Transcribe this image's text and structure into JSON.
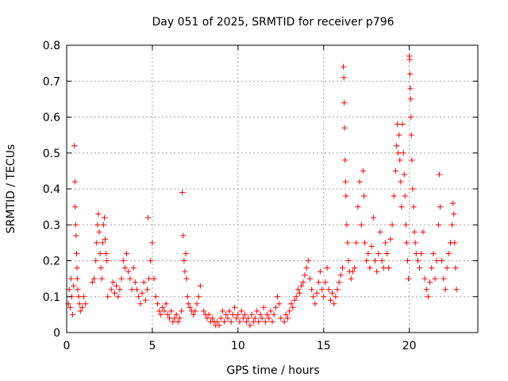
{
  "chart_data": {
    "type": "scatter",
    "title": "Day 051 of 2025, SRMTID for receiver p796",
    "xlabel": "GPS time / hours",
    "ylabel": "SRMTID / TECUs",
    "xlim": [
      0,
      24
    ],
    "ylim": [
      0,
      0.8
    ],
    "x_ticks": [
      0,
      5,
      10,
      15,
      20
    ],
    "x_tick_labels": [
      "0",
      "5",
      "10",
      "15",
      "20"
    ],
    "y_ticks": [
      0,
      0.1,
      0.2,
      0.3,
      0.4,
      0.5,
      0.6,
      0.7,
      0.8
    ],
    "y_tick_labels": [
      "0",
      "0.1",
      "0.2",
      "0.3",
      "0.4",
      "0.5",
      "0.6",
      "0.7",
      "0.8"
    ],
    "grid": true,
    "marker": "+",
    "series": [
      {
        "name": "SRMTID",
        "color": "#ff0000",
        "points": [
          [
            0.1,
            0.08
          ],
          [
            0.15,
            0.12
          ],
          [
            0.2,
            0.07
          ],
          [
            0.25,
            0.15
          ],
          [
            0.3,
            0.1
          ],
          [
            0.35,
            0.05
          ],
          [
            0.4,
            0.13
          ],
          [
            0.45,
            0.52
          ],
          [
            0.48,
            0.42
          ],
          [
            0.5,
            0.35
          ],
          [
            0.52,
            0.3
          ],
          [
            0.55,
            0.27
          ],
          [
            0.58,
            0.22
          ],
          [
            0.6,
            0.18
          ],
          [
            0.62,
            0.15
          ],
          [
            0.65,
            0.12
          ],
          [
            0.7,
            0.1
          ],
          [
            0.75,
            0.08
          ],
          [
            0.8,
            0.06
          ],
          [
            0.9,
            0.07
          ],
          [
            1.0,
            0.1
          ],
          [
            1.1,
            0.08
          ],
          [
            1.5,
            0.14
          ],
          [
            1.6,
            0.15
          ],
          [
            1.7,
            0.2
          ],
          [
            1.75,
            0.25
          ],
          [
            1.8,
            0.3
          ],
          [
            1.85,
            0.33
          ],
          [
            1.9,
            0.28
          ],
          [
            1.95,
            0.22
          ],
          [
            2.0,
            0.18
          ],
          [
            2.05,
            0.15
          ],
          [
            2.1,
            0.25
          ],
          [
            2.15,
            0.3
          ],
          [
            2.2,
            0.32
          ],
          [
            2.25,
            0.26
          ],
          [
            2.3,
            0.22
          ],
          [
            2.35,
            0.2
          ],
          [
            2.4,
            0.1
          ],
          [
            2.6,
            0.12
          ],
          [
            2.7,
            0.14
          ],
          [
            2.8,
            0.11
          ],
          [
            2.9,
            0.13
          ],
          [
            3.0,
            0.1
          ],
          [
            3.1,
            0.12
          ],
          [
            3.2,
            0.15
          ],
          [
            3.3,
            0.2
          ],
          [
            3.4,
            0.18
          ],
          [
            3.5,
            0.22
          ],
          [
            3.6,
            0.17
          ],
          [
            3.7,
            0.15
          ],
          [
            3.8,
            0.12
          ],
          [
            3.9,
            0.18
          ],
          [
            4.0,
            0.14
          ],
          [
            4.1,
            0.12
          ],
          [
            4.2,
            0.1
          ],
          [
            4.3,
            0.08
          ],
          [
            4.4,
            0.11
          ],
          [
            4.5,
            0.14
          ],
          [
            4.6,
            0.09
          ],
          [
            4.7,
            0.12
          ],
          [
            4.8,
            0.15
          ],
          [
            4.9,
            0.2
          ],
          [
            5.0,
            0.25
          ],
          [
            5.1,
            0.15
          ],
          [
            4.75,
            0.32
          ],
          [
            5.2,
            0.1
          ],
          [
            5.3,
            0.08
          ],
          [
            5.4,
            0.06
          ],
          [
            5.5,
            0.05
          ],
          [
            5.6,
            0.07
          ],
          [
            5.7,
            0.06
          ],
          [
            5.8,
            0.08
          ],
          [
            5.9,
            0.05
          ],
          [
            6.0,
            0.04
          ],
          [
            6.1,
            0.06
          ],
          [
            6.2,
            0.03
          ],
          [
            6.3,
            0.04
          ],
          [
            6.4,
            0.05
          ],
          [
            6.5,
            0.03
          ],
          [
            6.6,
            0.04
          ],
          [
            6.7,
            0.06
          ],
          [
            6.75,
            0.39
          ],
          [
            6.8,
            0.27
          ],
          [
            6.85,
            0.2
          ],
          [
            6.9,
            0.17
          ],
          [
            6.95,
            0.22
          ],
          [
            7.0,
            0.15
          ],
          [
            7.05,
            0.1
          ],
          [
            7.1,
            0.08
          ],
          [
            7.2,
            0.07
          ],
          [
            7.3,
            0.06
          ],
          [
            7.4,
            0.05
          ],
          [
            7.5,
            0.06
          ],
          [
            7.6,
            0.08
          ],
          [
            7.7,
            0.1
          ],
          [
            7.8,
            0.13
          ],
          [
            8.0,
            0.06
          ],
          [
            8.1,
            0.05
          ],
          [
            8.2,
            0.04
          ],
          [
            8.3,
            0.05
          ],
          [
            8.4,
            0.03
          ],
          [
            8.5,
            0.04
          ],
          [
            8.6,
            0.03
          ],
          [
            8.7,
            0.02
          ],
          [
            8.8,
            0.03
          ],
          [
            8.9,
            0.02
          ],
          [
            9.0,
            0.04
          ],
          [
            9.1,
            0.06
          ],
          [
            9.2,
            0.03
          ],
          [
            9.3,
            0.05
          ],
          [
            9.4,
            0.04
          ],
          [
            9.5,
            0.06
          ],
          [
            9.6,
            0.03
          ],
          [
            9.7,
            0.05
          ],
          [
            9.8,
            0.07
          ],
          [
            9.9,
            0.04
          ],
          [
            10.0,
            0.05
          ],
          [
            10.1,
            0.03
          ],
          [
            10.2,
            0.06
          ],
          [
            10.3,
            0.04
          ],
          [
            10.4,
            0.05
          ],
          [
            10.5,
            0.03
          ],
          [
            10.6,
            0.04
          ],
          [
            10.7,
            0.02
          ],
          [
            10.8,
            0.05
          ],
          [
            10.9,
            0.03
          ],
          [
            11.0,
            0.04
          ],
          [
            11.1,
            0.06
          ],
          [
            11.2,
            0.03
          ],
          [
            11.3,
            0.05
          ],
          [
            11.4,
            0.04
          ],
          [
            11.5,
            0.07
          ],
          [
            11.6,
            0.03
          ],
          [
            11.7,
            0.05
          ],
          [
            11.8,
            0.04
          ],
          [
            11.9,
            0.06
          ],
          [
            12.0,
            0.03
          ],
          [
            12.1,
            0.05
          ],
          [
            12.2,
            0.07
          ],
          [
            12.3,
            0.1
          ],
          [
            12.4,
            0.08
          ],
          [
            12.5,
            0.04
          ],
          [
            12.7,
            0.03
          ],
          [
            12.8,
            0.05
          ],
          [
            12.9,
            0.04
          ],
          [
            13.0,
            0.06
          ],
          [
            13.1,
            0.08
          ],
          [
            13.2,
            0.07
          ],
          [
            13.3,
            0.09
          ],
          [
            13.4,
            0.1
          ],
          [
            13.5,
            0.12
          ],
          [
            13.6,
            0.11
          ],
          [
            13.7,
            0.13
          ],
          [
            13.8,
            0.14
          ],
          [
            13.9,
            0.16
          ],
          [
            14.0,
            0.18
          ],
          [
            14.1,
            0.2
          ],
          [
            14.2,
            0.15
          ],
          [
            14.3,
            0.12
          ],
          [
            14.4,
            0.1
          ],
          [
            14.5,
            0.08
          ],
          [
            14.6,
            0.11
          ],
          [
            14.7,
            0.14
          ],
          [
            14.8,
            0.17
          ],
          [
            14.9,
            0.12
          ],
          [
            15.0,
            0.1
          ],
          [
            15.1,
            0.14
          ],
          [
            15.2,
            0.18
          ],
          [
            15.3,
            0.12
          ],
          [
            15.4,
            0.09
          ],
          [
            15.5,
            0.11
          ],
          [
            15.6,
            0.08
          ],
          [
            15.7,
            0.1
          ],
          [
            15.8,
            0.12
          ],
          [
            15.9,
            0.14
          ],
          [
            16.0,
            0.16
          ],
          [
            16.1,
            0.18
          ],
          [
            16.15,
            0.74
          ],
          [
            16.18,
            0.71
          ],
          [
            16.2,
            0.64
          ],
          [
            16.22,
            0.57
          ],
          [
            16.25,
            0.48
          ],
          [
            16.28,
            0.42
          ],
          [
            16.3,
            0.38
          ],
          [
            16.35,
            0.3
          ],
          [
            16.4,
            0.25
          ],
          [
            16.45,
            0.2
          ],
          [
            16.5,
            0.17
          ],
          [
            16.6,
            0.15
          ],
          [
            16.7,
            0.17
          ],
          [
            16.8,
            0.18
          ],
          [
            16.9,
            0.25
          ],
          [
            17.0,
            0.35
          ],
          [
            17.1,
            0.42
          ],
          [
            17.2,
            0.3
          ],
          [
            17.3,
            0.45
          ],
          [
            17.35,
            0.38
          ],
          [
            17.4,
            0.25
          ],
          [
            17.5,
            0.2
          ],
          [
            17.6,
            0.22
          ],
          [
            17.7,
            0.18
          ],
          [
            17.8,
            0.24
          ],
          [
            17.9,
            0.32
          ],
          [
            18.0,
            0.2
          ],
          [
            18.1,
            0.17
          ],
          [
            18.2,
            0.22
          ],
          [
            18.3,
            0.28
          ],
          [
            18.4,
            0.2
          ],
          [
            18.5,
            0.18
          ],
          [
            18.6,
            0.25
          ],
          [
            18.7,
            0.22
          ],
          [
            18.8,
            0.18
          ],
          [
            18.9,
            0.26
          ],
          [
            19.0,
            0.3
          ],
          [
            19.1,
            0.38
          ],
          [
            19.2,
            0.45
          ],
          [
            19.25,
            0.52
          ],
          [
            19.3,
            0.58
          ],
          [
            19.35,
            0.5
          ],
          [
            19.4,
            0.55
          ],
          [
            19.45,
            0.48
          ],
          [
            19.5,
            0.42
          ],
          [
            19.55,
            0.35
          ],
          [
            19.6,
            0.58
          ],
          [
            19.65,
            0.5
          ],
          [
            19.7,
            0.44
          ],
          [
            19.75,
            0.38
          ],
          [
            19.8,
            0.3
          ],
          [
            19.85,
            0.25
          ],
          [
            19.9,
            0.2
          ],
          [
            19.95,
            0.15
          ],
          [
            20.0,
            0.77
          ],
          [
            20.02,
            0.76
          ],
          [
            20.04,
            0.72
          ],
          [
            20.06,
            0.68
          ],
          [
            20.08,
            0.65
          ],
          [
            20.1,
            0.6
          ],
          [
            20.12,
            0.55
          ],
          [
            20.15,
            0.48
          ],
          [
            20.2,
            0.4
          ],
          [
            20.25,
            0.35
          ],
          [
            20.3,
            0.28
          ],
          [
            20.35,
            0.25
          ],
          [
            20.4,
            0.22
          ],
          [
            20.5,
            0.2
          ],
          [
            20.6,
            0.18
          ],
          [
            20.7,
            0.22
          ],
          [
            20.8,
            0.28
          ],
          [
            20.9,
            0.15
          ],
          [
            21.0,
            0.12
          ],
          [
            21.1,
            0.1
          ],
          [
            21.2,
            0.14
          ],
          [
            21.3,
            0.18
          ],
          [
            21.4,
            0.22
          ],
          [
            21.5,
            0.15
          ],
          [
            21.6,
            0.2
          ],
          [
            21.7,
            0.3
          ],
          [
            21.75,
            0.44
          ],
          [
            21.8,
            0.35
          ],
          [
            21.9,
            0.2
          ],
          [
            22.0,
            0.15
          ],
          [
            22.1,
            0.12
          ],
          [
            22.2,
            0.18
          ],
          [
            22.3,
            0.22
          ],
          [
            22.4,
            0.25
          ],
          [
            22.5,
            0.3
          ],
          [
            22.55,
            0.36
          ],
          [
            22.6,
            0.33
          ],
          [
            22.65,
            0.25
          ],
          [
            22.7,
            0.18
          ],
          [
            22.75,
            0.12
          ]
        ]
      }
    ]
  }
}
